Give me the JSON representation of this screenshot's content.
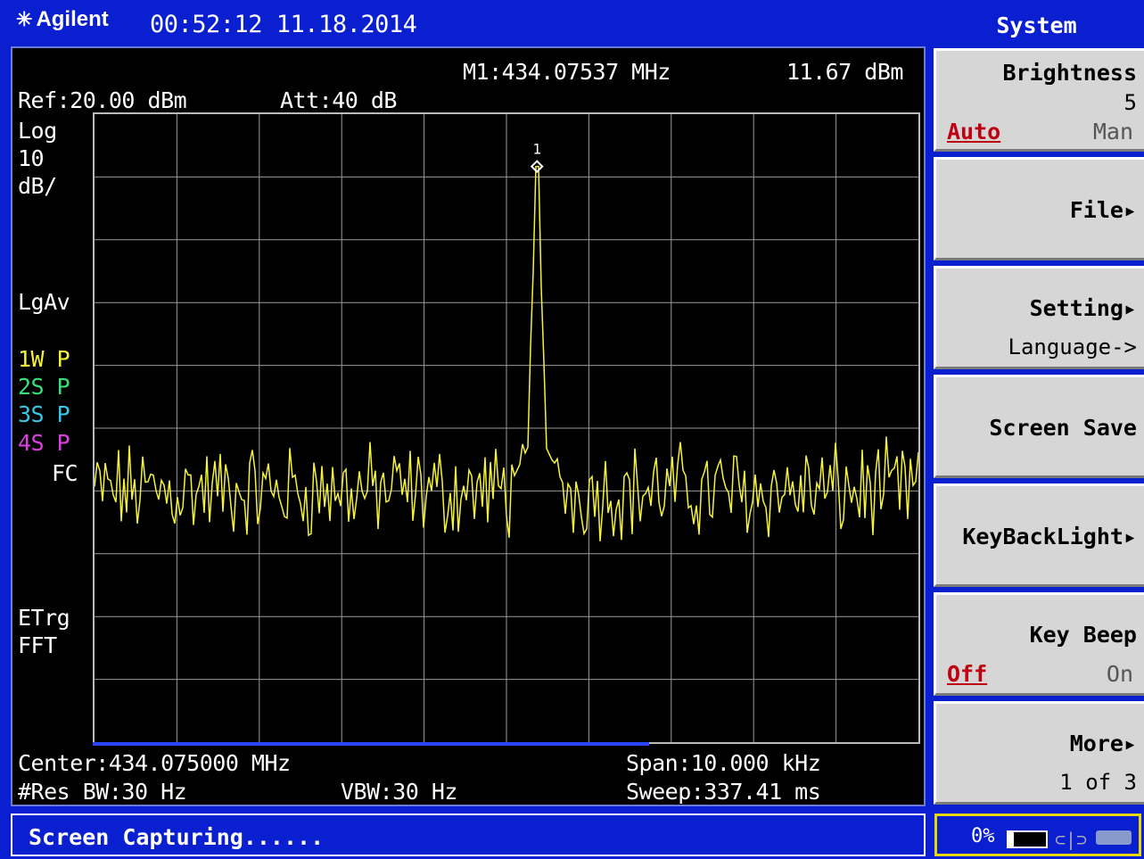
{
  "header": {
    "brand": "Agilent",
    "datetime": "00:52:12 11.18.2014"
  },
  "display": {
    "marker_readout": "M1:434.07537 MHz",
    "marker_level": "11.67 dBm",
    "ref": "Ref:20.00 dBm",
    "att": "Att:40 dB",
    "scale_lines": [
      "Log",
      "10",
      "dB/"
    ],
    "detector": "LgAv",
    "traces": [
      {
        "num": "1W",
        "mode": "P",
        "color": "#f5f23a"
      },
      {
        "num": "2S",
        "mode": "P",
        "color": "#37e07a"
      },
      {
        "num": "3S",
        "mode": "P",
        "color": "#36c8e8"
      },
      {
        "num": "4S",
        "mode": "P",
        "color": "#e040e0"
      }
    ],
    "fc": "FC",
    "trigger": "ETrg",
    "sweep_type": "FFT",
    "marker_label": "1",
    "center": "Center:434.075000 MHz",
    "span": "Span:10.000 kHz",
    "rbw": "#Res BW:30 Hz",
    "vbw": "VBW:30 Hz",
    "sweep": "Sweep:337.41 ms"
  },
  "softkeys": {
    "title": "System",
    "brightness": {
      "label": "Brightness",
      "value": "5",
      "active": "Auto",
      "inactive": "Man"
    },
    "file": "File▸",
    "setting": {
      "label": "Setting▸",
      "sub": "Language->"
    },
    "screen_save": "Screen Save",
    "keybacklight": "KeyBackLight▸",
    "key_beep": {
      "label": "Key Beep",
      "active": "Off",
      "inactive": "On"
    },
    "more": {
      "label": "More▸",
      "page": "1 of 3"
    }
  },
  "status": {
    "message": "Screen Capturing......",
    "battery_pct": "0%",
    "battery_level": 0
  },
  "chart_data": {
    "type": "line",
    "x_range_mhz": [
      434.07,
      434.08
    ],
    "y_range_dbm": [
      -80,
      20
    ],
    "marker": {
      "x_mhz": 434.07537,
      "y_dbm": 11.67
    },
    "noise_floor_dbm": -40,
    "peak_x_mhz": 434.07537,
    "peak_y_dbm": 11.67,
    "grid": true,
    "trace_color": "#f5f23a"
  }
}
